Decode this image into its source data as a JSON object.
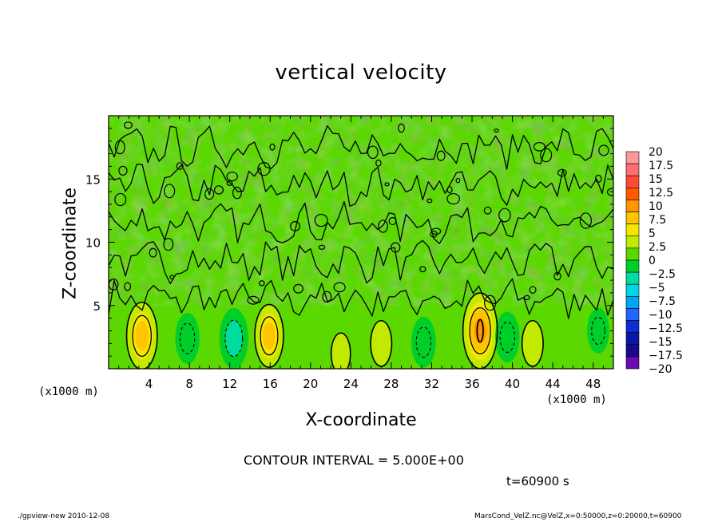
{
  "chart_data": {
    "type": "heatmap",
    "title": "vertical velocity",
    "xlabel": "X-coordinate",
    "ylabel": "Z-coordinate",
    "x_unit": "(x1000 m)",
    "xlim": [
      0,
      50
    ],
    "ylim": [
      0,
      20
    ],
    "x_ticks": [
      4,
      8,
      12,
      16,
      20,
      24,
      28,
      32,
      36,
      40,
      44,
      48
    ],
    "y_ticks": [
      5,
      10,
      15
    ],
    "contour_interval_text": "CONTOUR INTERVAL = 5.000E+00",
    "time_text": "t=60900 s",
    "colorbar": {
      "levels": [
        "20",
        "17.5",
        "15",
        "12.5",
        "10",
        "7.5",
        "5",
        "2.5",
        "0",
        "−2.5",
        "−5",
        "−7.5",
        "−10",
        "−12.5",
        "−15",
        "−17.5",
        "−20"
      ],
      "colors": [
        "#ff9999",
        "#ff6f6f",
        "#ff4a3a",
        "#ff5a00",
        "#ff9600",
        "#ffc400",
        "#f4e600",
        "#c2ea00",
        "#5ad800",
        "#00cf2a",
        "#00dca0",
        "#00d6e6",
        "#00a6f0",
        "#2266ff",
        "#0d2dd6",
        "#0a18a8",
        "#1a0a88",
        "#6a0ab0"
      ]
    },
    "updrafts": [
      {
        "x": 3.3,
        "z": 2.6,
        "w": 9
      },
      {
        "x": 15.9,
        "z": 2.6,
        "w": 8
      },
      {
        "x": 36.8,
        "z": 3.0,
        "w": 11
      },
      {
        "x": 27.0,
        "z": 2.0,
        "w": 4
      },
      {
        "x": 23.0,
        "z": 1.2,
        "w": 3
      },
      {
        "x": 42.0,
        "z": 2.0,
        "w": 4
      }
    ],
    "downdrafts": [
      {
        "x": 7.8,
        "z": 2.4,
        "w": -4
      },
      {
        "x": 12.4,
        "z": 2.4,
        "w": -6
      },
      {
        "x": 31.2,
        "z": 2.1,
        "w": -4
      },
      {
        "x": 39.5,
        "z": 2.5,
        "w": -4
      },
      {
        "x": 48.5,
        "z": 3.0,
        "w": -3
      }
    ]
  },
  "footer": {
    "left": "./gpview-new   2010-12-08",
    "right": "MarsCond_VelZ.nc@VelZ,x=0:50000,z=0:20000,t=60900"
  }
}
